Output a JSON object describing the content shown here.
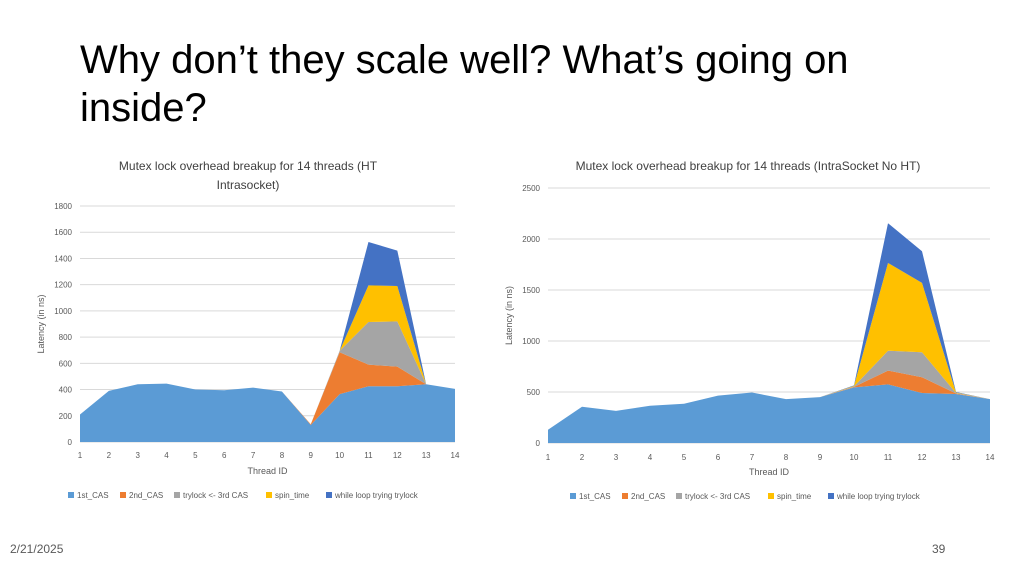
{
  "slide": {
    "title": "Why don’t they scale well? What’s going on inside?",
    "date": "2/21/2025",
    "page_number": "39"
  },
  "colors": {
    "1st_CAS": "#5b9bd5",
    "2nd_CAS": "#ed7d31",
    "trylock <- 3rd CAS": "#a5a5a5",
    "spin_time": "#ffc000",
    "while loop trying trylock": "#4472c4",
    "gridline": "#d9d9d9",
    "axis_text": "#595959"
  },
  "chart_data": [
    {
      "type": "area",
      "stacked": true,
      "title": "Mutex lock overhead breakup for 14 threads   (HT Intrasocket)",
      "xlabel": "Thread ID",
      "ylabel": "Latency (in ns)",
      "categories": [
        "1",
        "2",
        "3",
        "4",
        "5",
        "6",
        "7",
        "8",
        "9",
        "10",
        "11",
        "12",
        "13",
        "14"
      ],
      "ylim": [
        0,
        1800
      ],
      "yticks": [
        0,
        200,
        400,
        600,
        800,
        1000,
        1200,
        1400,
        1600,
        1800
      ],
      "grid": true,
      "legend_position": "bottom",
      "series": [
        {
          "name": "1st_CAS",
          "values": [
            210,
            390,
            440,
            445,
            400,
            395,
            415,
            385,
            130,
            365,
            425,
            425,
            440,
            405
          ]
        },
        {
          "name": "2nd_CAS",
          "values": [
            0,
            0,
            0,
            0,
            0,
            0,
            0,
            0,
            5,
            320,
            165,
            150,
            0,
            0
          ]
        },
        {
          "name": "trylock <- 3rd CAS",
          "values": [
            0,
            0,
            0,
            0,
            0,
            0,
            0,
            0,
            0,
            10,
            325,
            345,
            0,
            0
          ]
        },
        {
          "name": "spin_time",
          "values": [
            0,
            0,
            0,
            0,
            0,
            0,
            0,
            0,
            0,
            0,
            280,
            270,
            0,
            0
          ]
        },
        {
          "name": "while loop trying trylock",
          "values": [
            0,
            0,
            0,
            0,
            0,
            0,
            0,
            0,
            0,
            0,
            330,
            270,
            0,
            0
          ]
        }
      ]
    },
    {
      "type": "area",
      "stacked": true,
      "title": "Mutex  lock overhead  breakup for 14 threads  (IntraSocket No HT)",
      "xlabel": "Thread ID",
      "ylabel": "Latency (in ns)",
      "categories": [
        "1",
        "2",
        "3",
        "4",
        "5",
        "6",
        "7",
        "8",
        "9",
        "10",
        "11",
        "12",
        "13",
        "14"
      ],
      "ylim": [
        0,
        2500
      ],
      "yticks": [
        0,
        500,
        1000,
        1500,
        2000,
        2500
      ],
      "grid": true,
      "legend_position": "bottom",
      "series": [
        {
          "name": "1st_CAS",
          "values": [
            130,
            355,
            315,
            365,
            385,
            465,
            495,
            430,
            450,
            545,
            575,
            490,
            480,
            430
          ]
        },
        {
          "name": "2nd_CAS",
          "values": [
            0,
            0,
            0,
            0,
            0,
            0,
            0,
            0,
            0,
            5,
            135,
            155,
            5,
            0
          ]
        },
        {
          "name": "trylock <- 3rd CAS",
          "values": [
            0,
            0,
            0,
            0,
            0,
            0,
            0,
            0,
            0,
            5,
            195,
            245,
            5,
            0
          ]
        },
        {
          "name": "spin_time",
          "values": [
            0,
            0,
            0,
            0,
            0,
            0,
            0,
            0,
            0,
            5,
            860,
            680,
            5,
            0
          ]
        },
        {
          "name": "while loop trying trylock",
          "values": [
            0,
            0,
            0,
            0,
            0,
            0,
            0,
            0,
            0,
            5,
            390,
            310,
            5,
            0
          ]
        }
      ]
    }
  ]
}
